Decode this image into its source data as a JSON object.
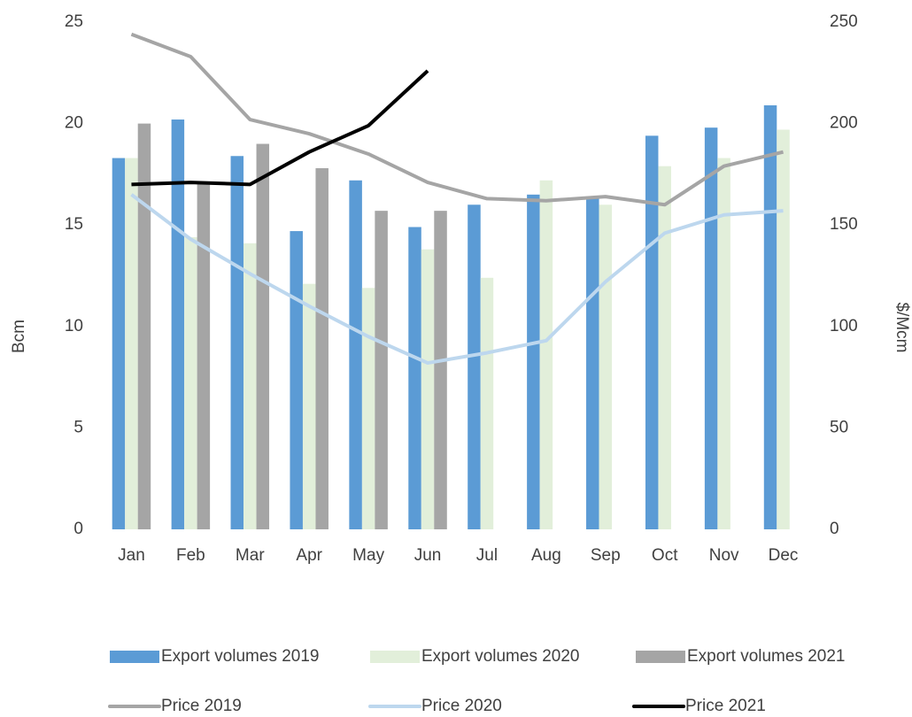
{
  "chart_data": {
    "type": "bar_line",
    "categories": [
      "Jan",
      "Feb",
      "Mar",
      "Apr",
      "May",
      "Jun",
      "Jul",
      "Aug",
      "Sep",
      "Oct",
      "Nov",
      "Dec"
    ],
    "ylabel": "Bcm",
    "y2label": "$/Mcm",
    "ylim": [
      0,
      25
    ],
    "yticks": [
      0,
      5,
      10,
      15,
      20,
      25
    ],
    "y2lim": [
      0,
      250
    ],
    "y2ticks": [
      0,
      50,
      100,
      150,
      200,
      250
    ],
    "series": [
      {
        "name": "Export volumes 2019",
        "type": "bar",
        "color": "#5b9bd5",
        "values": [
          18.3,
          20.2,
          18.4,
          14.7,
          17.2,
          14.9,
          16.0,
          16.5,
          16.3,
          19.4,
          19.8,
          20.9
        ]
      },
      {
        "name": "Export volumes 2020",
        "type": "bar",
        "color": "#e2efda",
        "values": [
          18.3,
          14.4,
          14.1,
          12.1,
          11.9,
          13.8,
          12.4,
          17.2,
          16.0,
          17.9,
          18.3,
          19.7
        ]
      },
      {
        "name": "Export volumes 2021",
        "type": "bar",
        "color": "#a5a5a5",
        "values": [
          20.0,
          17.1,
          19.0,
          17.8,
          15.7,
          15.7,
          null,
          null,
          null,
          null,
          null,
          null
        ]
      },
      {
        "name": "Price 2019",
        "type": "line",
        "axis": "y2",
        "color": "#a5a5a5",
        "values": [
          244,
          233,
          202,
          195,
          185,
          171,
          163,
          162,
          164,
          160,
          179,
          186
        ]
      },
      {
        "name": "Price 2020",
        "type": "line",
        "axis": "y2",
        "color": "#bdd7ee",
        "values": [
          165,
          143,
          126,
          110,
          95,
          82,
          87,
          93,
          122,
          146,
          155,
          157
        ]
      },
      {
        "name": "Price 2021",
        "type": "line",
        "axis": "y2",
        "color": "#000000",
        "values": [
          170,
          171,
          170,
          186,
          199,
          226,
          null,
          null,
          null,
          null,
          null,
          null
        ]
      }
    ]
  }
}
